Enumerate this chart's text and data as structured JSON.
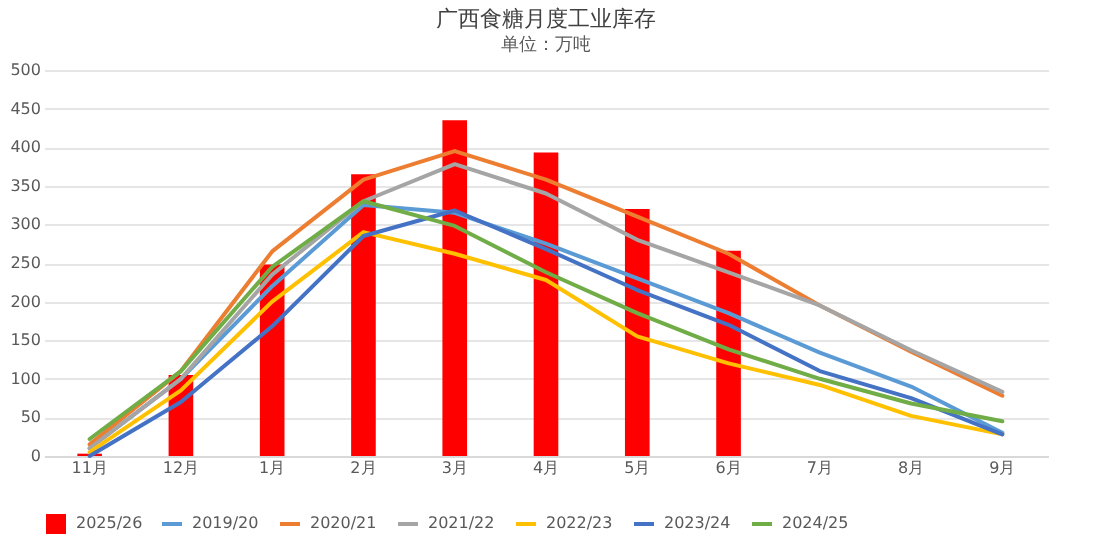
{
  "chart_data": {
    "type": "bar",
    "title": "广西食糖月度工业库存",
    "subtitle": "单位：万吨",
    "categories": [
      "11月",
      "12月",
      "1月",
      "2月",
      "3月",
      "4月",
      "5月",
      "6月",
      "7月",
      "8月",
      "9月"
    ],
    "series": [
      {
        "name": "2025/26",
        "color": "#ff0000",
        "values": [
          3,
          105,
          248,
          365,
          435,
          393,
          320,
          266,
          null,
          null,
          null
        ]
      },
      {
        "name": "2019/20",
        "type": "line",
        "color": "#5b9bd5",
        "values": [
          10,
          100,
          220,
          325,
          315,
          275,
          230,
          185,
          134,
          90,
          30
        ]
      },
      {
        "name": "2020/21",
        "type": "line",
        "color": "#ed7d31",
        "values": [
          15,
          110,
          265,
          358,
          395,
          358,
          310,
          262,
          195,
          135,
          78
        ]
      },
      {
        "name": "2021/22",
        "type": "line",
        "color": "#a5a5a5",
        "values": [
          10,
          100,
          235,
          330,
          378,
          340,
          280,
          238,
          195,
          137,
          83
        ]
      },
      {
        "name": "2022/23",
        "type": "line",
        "color": "#ffc000",
        "values": [
          5,
          85,
          200,
          290,
          262,
          228,
          155,
          120,
          92,
          52,
          28
        ]
      },
      {
        "name": "2023/24",
        "type": "line",
        "color": "#4472c4",
        "values": [
          0,
          70,
          168,
          285,
          318,
          268,
          215,
          170,
          110,
          75,
          28
        ]
      },
      {
        "name": "2024/25",
        "type": "line",
        "color": "#70ad47",
        "values": [
          22,
          110,
          245,
          330,
          298,
          238,
          185,
          138,
          100,
          68,
          45
        ]
      }
    ],
    "ylim": [
      0,
      500
    ],
    "yticks": [
      0,
      50,
      100,
      150,
      200,
      250,
      300,
      350,
      400,
      450,
      500
    ],
    "grid": "y",
    "legend": "bottom"
  }
}
